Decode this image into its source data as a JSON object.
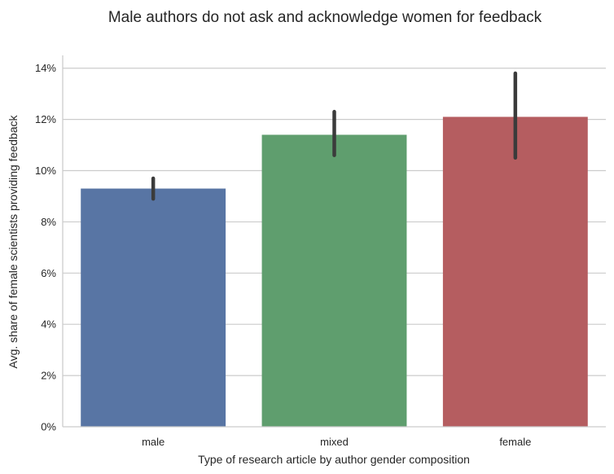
{
  "chart_data": {
    "type": "bar",
    "title": "Male authors do not ask and acknowledge women for feedback",
    "xlabel": "Type of research article by author gender composition",
    "ylabel": "Avg. share of female scientists providing feedback",
    "categories": [
      "male",
      "mixed",
      "female"
    ],
    "values": [
      0.093,
      0.114,
      0.121
    ],
    "error_low": [
      0.089,
      0.106,
      0.105
    ],
    "error_high": [
      0.097,
      0.123,
      0.138
    ],
    "colors": [
      "#5875a4",
      "#5f9e6e",
      "#b55d60"
    ],
    "error_color": "#3b3b3b",
    "ylim": [
      0,
      0.145
    ],
    "yticks": [
      0,
      0.02,
      0.04,
      0.06,
      0.08,
      0.1,
      0.12,
      0.14
    ],
    "ytick_labels": [
      "0%",
      "2%",
      "4%",
      "6%",
      "8%",
      "10%",
      "12%",
      "14%"
    ],
    "grid": "horizontal",
    "legend": "none"
  }
}
